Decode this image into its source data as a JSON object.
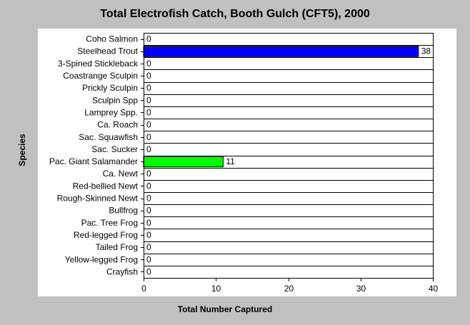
{
  "chart_data": {
    "type": "bar",
    "orientation": "horizontal",
    "title": "Total Electrofish Catch, Booth Gulch (CFT5), 2000",
    "xlabel": "Total Number Captured",
    "ylabel": "Species",
    "xlim": [
      0,
      40
    ],
    "xticks": [
      0,
      10,
      20,
      30,
      40
    ],
    "grid": "horizontal",
    "categories": [
      "Coho Salmon",
      "Steelhead Trout",
      "3-Spined Stickleback",
      "Coastrange Sculpin",
      "Prickly Sculpin",
      "Sculpin Spp",
      "Lamprey Spp.",
      "Ca. Roach",
      "Sac. Squawfish",
      "Sac. Sucker",
      "Pac. Giant Salamander",
      "Ca. Newt",
      "Red-bellied Newt",
      "Rough-Skinned Newt",
      "Bullfrog",
      "Pac. Tree Frog",
      "Red-legged Frog",
      "Tailed Frog",
      "Yellow-legged Frog",
      "Crayfish"
    ],
    "values": [
      0,
      38,
      0,
      0,
      0,
      0,
      0,
      0,
      0,
      0,
      11,
      0,
      0,
      0,
      0,
      0,
      0,
      0,
      0,
      0
    ],
    "colors": {
      "Steelhead Trout": "#0000ff",
      "Pac. Giant Salamander": "#00ff00"
    }
  }
}
